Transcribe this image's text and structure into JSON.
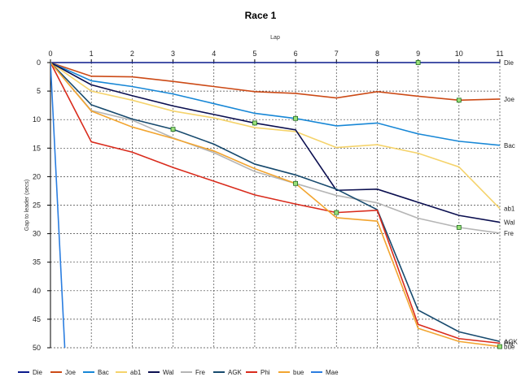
{
  "chart_data": {
    "type": "line",
    "title": "Race 1",
    "xlabel": "Lap",
    "ylabel": "Gap to leader (secs)",
    "xlim": [
      0,
      11
    ],
    "ylim": [
      0,
      50
    ],
    "y_reversed": true,
    "x_ticks": [
      0,
      1,
      2,
      3,
      4,
      5,
      6,
      7,
      8,
      9,
      10,
      11
    ],
    "y_ticks": [
      0,
      5,
      10,
      15,
      20,
      25,
      30,
      35,
      40,
      45,
      50
    ],
    "grid": "dotted",
    "legend_position": "bottom",
    "x_axis_position": "top",
    "x": [
      0,
      1,
      2,
      3,
      4,
      5,
      6,
      7,
      8,
      9,
      10,
      11
    ],
    "series": [
      {
        "name": "Die",
        "color": "#0a1a8c",
        "values": [
          0,
          0,
          0,
          0,
          0,
          0,
          0,
          0,
          0,
          0,
          0,
          0
        ],
        "end_label": "Die",
        "markers": [
          9
        ]
      },
      {
        "name": "Joe",
        "color": "#cc4a16",
        "values": [
          0,
          2.4,
          2.5,
          3.3,
          4.2,
          5.1,
          5.4,
          6.2,
          5.1,
          5.9,
          6.6,
          6.4
        ],
        "end_label": "Joe",
        "markers": [
          10
        ]
      },
      {
        "name": "Bac",
        "color": "#1787d6",
        "values": [
          0,
          3.2,
          4.2,
          5.5,
          7.2,
          8.9,
          9.8,
          11.1,
          10.6,
          12.5,
          13.8,
          14.5
        ],
        "end_label": "Bac",
        "markers": [
          6
        ]
      },
      {
        "name": "ab1",
        "color": "#f5d36b",
        "values": [
          0,
          5.0,
          6.6,
          8.5,
          9.7,
          11.4,
          12.1,
          14.9,
          14.4,
          15.9,
          18.3,
          25.6
        ],
        "end_label": "ab1",
        "markers": []
      },
      {
        "name": "Wal",
        "color": "#0b0f50",
        "values": [
          0,
          3.9,
          5.8,
          7.6,
          9.1,
          10.6,
          11.8,
          22.4,
          22.2,
          24.5,
          26.8,
          28.0
        ],
        "end_label": "Wal",
        "markers": [
          5
        ]
      },
      {
        "name": "Fre",
        "color": "#b5b5b5",
        "values": [
          0,
          8.4,
          10.1,
          13.2,
          15.8,
          19.1,
          21.2,
          23.3,
          24.6,
          27.3,
          28.9,
          29.9
        ],
        "end_label": "Fre",
        "markers": [
          10
        ]
      },
      {
        "name": "AGK",
        "color": "#174a6e",
        "values": [
          0,
          7.4,
          9.9,
          11.7,
          14.3,
          17.8,
          19.7,
          22.2,
          25.8,
          43.4,
          47.2,
          48.9
        ],
        "end_label": "AGK",
        "markers": [
          3
        ]
      },
      {
        "name": "Phi",
        "color": "#d92b1c",
        "values": [
          0,
          13.9,
          15.7,
          18.4,
          20.8,
          23.2,
          24.8,
          26.3,
          25.9,
          45.9,
          48.4,
          49.2
        ],
        "end_label": "Phi",
        "markers": [
          7
        ]
      },
      {
        "name": "bue",
        "color": "#f2a530",
        "values": [
          0,
          8.5,
          11.3,
          13.3,
          15.5,
          18.6,
          21.2,
          27.2,
          27.8,
          46.6,
          48.9,
          49.8
        ],
        "end_label": "bue",
        "markers": [
          6,
          11
        ]
      },
      {
        "name": "Mae",
        "color": "#2a7de0",
        "x": [
          0,
          0.35
        ],
        "values": [
          0,
          50
        ],
        "end_label": "",
        "markers": []
      }
    ]
  }
}
